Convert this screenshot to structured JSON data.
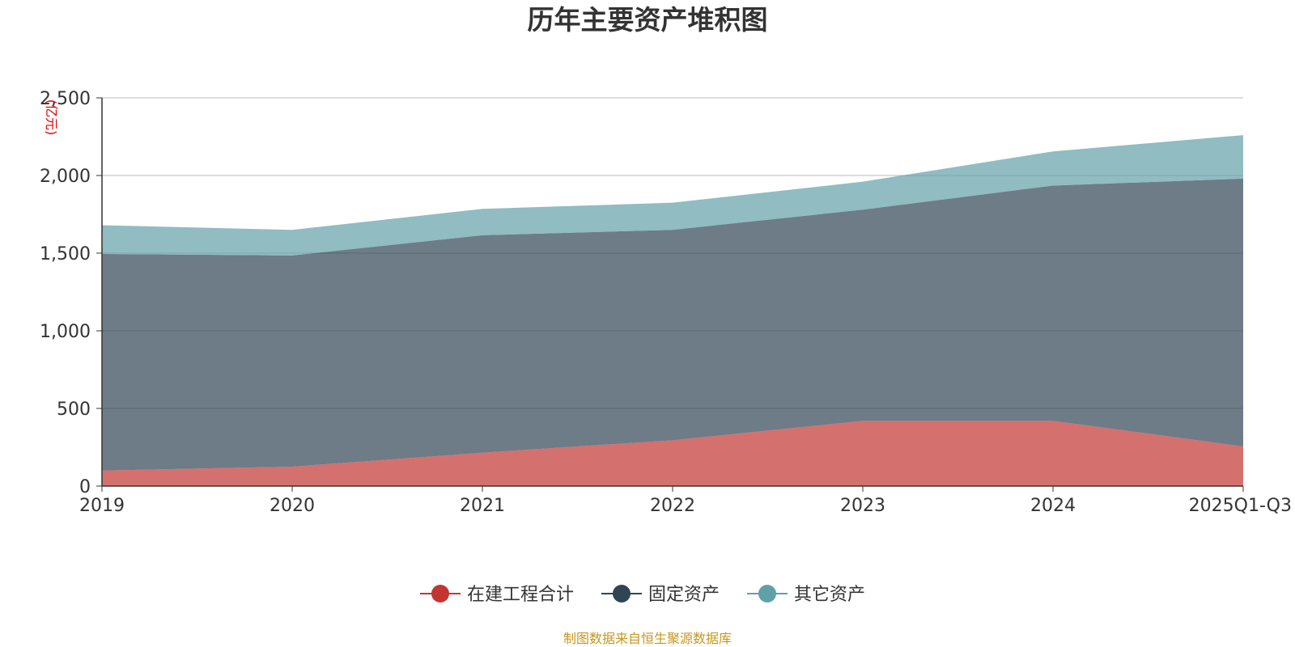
{
  "chart_data": {
    "type": "area",
    "stacked": true,
    "title": "历年主要资产堆积图",
    "unit_label": "(亿元)",
    "categories": [
      "2019",
      "2020",
      "2021",
      "2022",
      "2023",
      "2024",
      "2025Q1-Q3"
    ],
    "y_ticks": [
      "0",
      "500",
      "1,000",
      "1,500",
      "2,000",
      "2,500"
    ],
    "ylim": [
      0,
      2500
    ],
    "grid": true,
    "legend_position": "bottom",
    "series": [
      {
        "name": "在建工程合计",
        "color": "#c23531",
        "values": [
          100,
          125,
          215,
          295,
          420,
          420,
          255
        ]
      },
      {
        "name": "固定资产",
        "color": "#2f4554",
        "values": [
          1395,
          1360,
          1400,
          1355,
          1360,
          1515,
          1725
        ]
      },
      {
        "name": "其它资产",
        "color": "#61a0a8",
        "values": [
          185,
          165,
          170,
          175,
          180,
          220,
          280
        ]
      }
    ],
    "source": "制图数据来自恒生聚源数据库"
  }
}
